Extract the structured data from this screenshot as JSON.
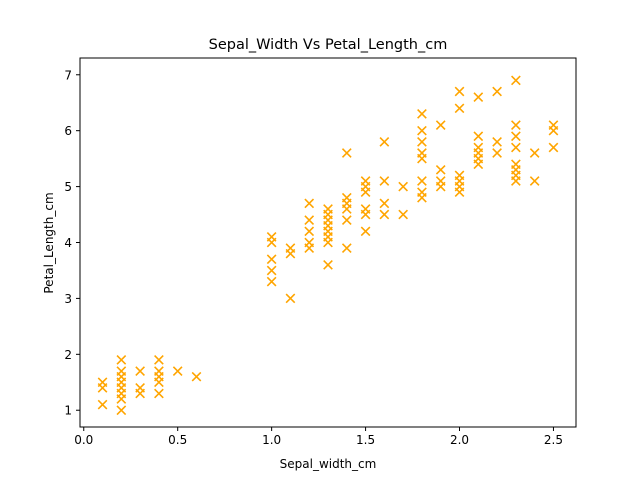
{
  "chart_data": {
    "type": "scatter",
    "title": "Sepal_Width Vs Petal_Length_cm",
    "xlabel": "Sepal_width_cm",
    "ylabel": "Petal_Length_cm",
    "xlim": [
      -0.02,
      2.62
    ],
    "ylim": [
      0.7,
      7.3
    ],
    "xticks": [
      "0.0",
      "0.5",
      "1.0",
      "1.5",
      "2.0",
      "2.5"
    ],
    "yticks": [
      "1",
      "2",
      "3",
      "4",
      "5",
      "6",
      "7"
    ],
    "grid": false,
    "marker": "x",
    "color": "#ffa500",
    "points": [
      [
        0.1,
        1.1
      ],
      [
        0.1,
        1.4
      ],
      [
        0.1,
        1.5
      ],
      [
        0.2,
        1.0
      ],
      [
        0.2,
        1.2
      ],
      [
        0.2,
        1.3
      ],
      [
        0.2,
        1.4
      ],
      [
        0.2,
        1.5
      ],
      [
        0.2,
        1.6
      ],
      [
        0.2,
        1.7
      ],
      [
        0.2,
        1.9
      ],
      [
        0.3,
        1.3
      ],
      [
        0.3,
        1.4
      ],
      [
        0.3,
        1.7
      ],
      [
        0.4,
        1.3
      ],
      [
        0.4,
        1.5
      ],
      [
        0.4,
        1.6
      ],
      [
        0.4,
        1.7
      ],
      [
        0.4,
        1.9
      ],
      [
        0.5,
        1.7
      ],
      [
        0.6,
        1.6
      ],
      [
        1.0,
        3.3
      ],
      [
        1.0,
        3.5
      ],
      [
        1.0,
        3.7
      ],
      [
        1.0,
        4.0
      ],
      [
        1.0,
        4.1
      ],
      [
        1.1,
        3.0
      ],
      [
        1.1,
        3.8
      ],
      [
        1.1,
        3.9
      ],
      [
        1.2,
        3.9
      ],
      [
        1.2,
        4.0
      ],
      [
        1.2,
        4.2
      ],
      [
        1.2,
        4.4
      ],
      [
        1.2,
        4.7
      ],
      [
        1.3,
        3.6
      ],
      [
        1.3,
        4.0
      ],
      [
        1.3,
        4.1
      ],
      [
        1.3,
        4.2
      ],
      [
        1.3,
        4.3
      ],
      [
        1.3,
        4.4
      ],
      [
        1.3,
        4.5
      ],
      [
        1.3,
        4.6
      ],
      [
        1.4,
        3.9
      ],
      [
        1.4,
        4.4
      ],
      [
        1.4,
        4.6
      ],
      [
        1.4,
        4.7
      ],
      [
        1.4,
        4.8
      ],
      [
        1.4,
        5.6
      ],
      [
        1.5,
        4.2
      ],
      [
        1.5,
        4.5
      ],
      [
        1.5,
        4.6
      ],
      [
        1.5,
        4.9
      ],
      [
        1.5,
        5.0
      ],
      [
        1.5,
        5.1
      ],
      [
        1.6,
        4.5
      ],
      [
        1.6,
        4.7
      ],
      [
        1.6,
        5.1
      ],
      [
        1.6,
        5.8
      ],
      [
        1.7,
        4.5
      ],
      [
        1.7,
        5.0
      ],
      [
        1.8,
        4.8
      ],
      [
        1.8,
        4.9
      ],
      [
        1.8,
        5.1
      ],
      [
        1.8,
        5.5
      ],
      [
        1.8,
        5.6
      ],
      [
        1.8,
        5.8
      ],
      [
        1.8,
        6.0
      ],
      [
        1.8,
        6.3
      ],
      [
        1.9,
        5.0
      ],
      [
        1.9,
        5.1
      ],
      [
        1.9,
        5.3
      ],
      [
        1.9,
        6.1
      ],
      [
        2.0,
        4.9
      ],
      [
        2.0,
        5.0
      ],
      [
        2.0,
        5.1
      ],
      [
        2.0,
        5.2
      ],
      [
        2.0,
        6.4
      ],
      [
        2.0,
        6.7
      ],
      [
        2.1,
        5.4
      ],
      [
        2.1,
        5.5
      ],
      [
        2.1,
        5.6
      ],
      [
        2.1,
        5.7
      ],
      [
        2.1,
        5.9
      ],
      [
        2.1,
        6.6
      ],
      [
        2.2,
        5.6
      ],
      [
        2.2,
        5.8
      ],
      [
        2.2,
        6.7
      ],
      [
        2.3,
        5.1
      ],
      [
        2.3,
        5.2
      ],
      [
        2.3,
        5.3
      ],
      [
        2.3,
        5.4
      ],
      [
        2.3,
        5.7
      ],
      [
        2.3,
        5.9
      ],
      [
        2.3,
        6.1
      ],
      [
        2.3,
        6.9
      ],
      [
        2.4,
        5.1
      ],
      [
        2.4,
        5.6
      ],
      [
        2.5,
        5.7
      ],
      [
        2.5,
        6.0
      ],
      [
        2.5,
        6.1
      ]
    ]
  }
}
